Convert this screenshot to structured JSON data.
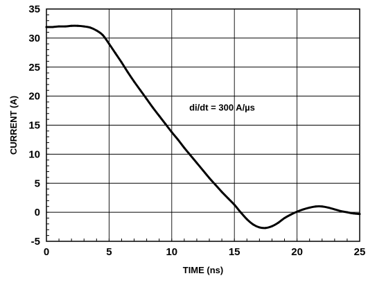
{
  "chart_data": {
    "type": "line",
    "title": "",
    "xlabel": "TIME (ns)",
    "ylabel": "CURRENT (A)",
    "xlim": [
      0,
      25
    ],
    "ylim": [
      -5,
      35
    ],
    "x_ticks": [
      0,
      5,
      10,
      15,
      20,
      25
    ],
    "y_ticks": [
      -5,
      0,
      5,
      10,
      15,
      20,
      25,
      30,
      35
    ],
    "grid": true,
    "annotation": "di/dt = 300 A/µs",
    "series": [
      {
        "color": "#000000",
        "x": [
          0,
          0.5,
          1,
          1.5,
          2,
          2.5,
          3,
          3.5,
          4,
          4.5,
          5,
          5.5,
          6,
          6.5,
          7,
          7.5,
          8,
          8.5,
          9,
          9.5,
          10,
          10.5,
          11,
          11.5,
          12,
          12.5,
          13,
          13.5,
          14,
          14.5,
          15,
          15.5,
          16,
          16.5,
          17,
          17.5,
          18,
          18.5,
          19,
          19.5,
          20,
          20.5,
          21,
          21.5,
          22,
          22.5,
          23,
          23.5,
          24,
          24.5,
          25
        ],
        "y": [
          31.9,
          31.9,
          32.0,
          32.0,
          32.1,
          32.1,
          32.0,
          31.8,
          31.3,
          30.5,
          29.0,
          27.4,
          25.8,
          24.1,
          22.5,
          21.0,
          19.5,
          18.0,
          16.6,
          15.2,
          13.8,
          12.5,
          11.1,
          9.8,
          8.5,
          7.2,
          5.9,
          4.7,
          3.5,
          2.4,
          1.3,
          0.0,
          -1.2,
          -2.1,
          -2.6,
          -2.7,
          -2.4,
          -1.8,
          -1.0,
          -0.4,
          0.1,
          0.5,
          0.8,
          1.0,
          1.0,
          0.8,
          0.5,
          0.2,
          0.0,
          -0.2,
          -0.3
        ]
      }
    ]
  }
}
